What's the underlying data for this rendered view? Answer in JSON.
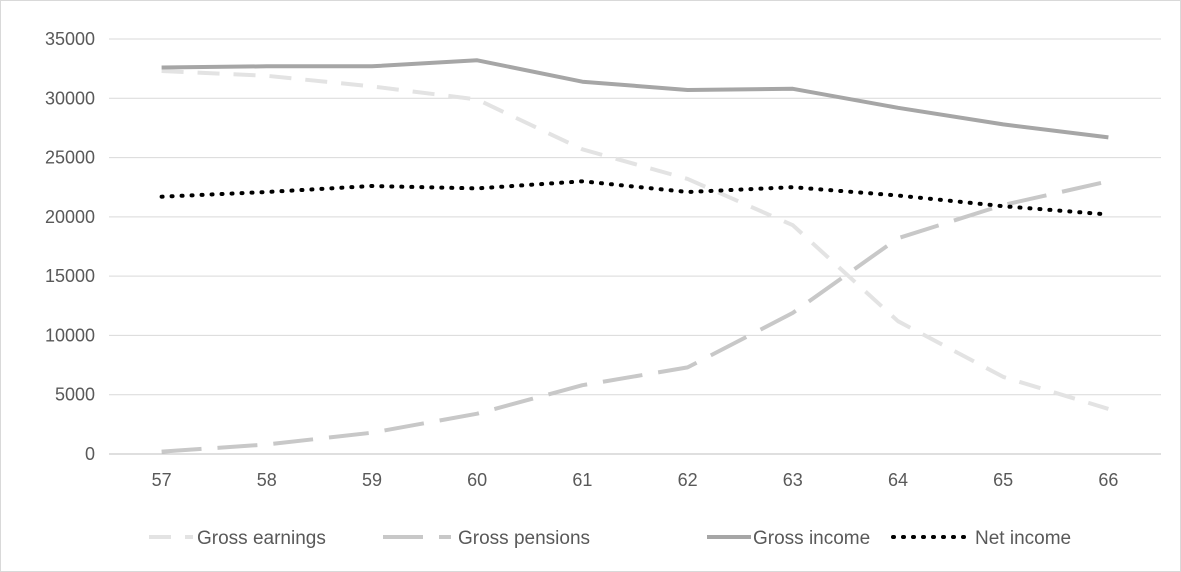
{
  "chart_data": {
    "type": "line",
    "title": "",
    "xlabel": "",
    "ylabel": "",
    "x": [
      57,
      58,
      59,
      60,
      61,
      62,
      63,
      64,
      65,
      66
    ],
    "ylim": [
      0,
      35000
    ],
    "yticks": [
      0,
      5000,
      10000,
      15000,
      20000,
      25000,
      30000,
      35000
    ],
    "grid": "horizontal",
    "legend_position": "bottom",
    "series": [
      {
        "name": "Gross earnings",
        "values": [
          32300,
          31900,
          31000,
          29900,
          25700,
          23200,
          19300,
          11200,
          6500,
          3800
        ],
        "color": "#e3e3e3",
        "style": "dash"
      },
      {
        "name": "Gross pensions",
        "values": [
          200,
          800,
          1800,
          3400,
          5800,
          7300,
          11900,
          18200,
          21000,
          23000
        ],
        "color": "#c8c8c8",
        "style": "longdash"
      },
      {
        "name": "Gross income",
        "values": [
          32600,
          32700,
          32700,
          33200,
          31400,
          30700,
          30800,
          29200,
          27800,
          26700
        ],
        "color": "#a6a6a6",
        "style": "solid"
      },
      {
        "name": "Net income",
        "values": [
          21700,
          22100,
          22600,
          22400,
          23000,
          22100,
          22500,
          21800,
          20900,
          20200
        ],
        "color": "#000000",
        "style": "dot"
      }
    ]
  }
}
